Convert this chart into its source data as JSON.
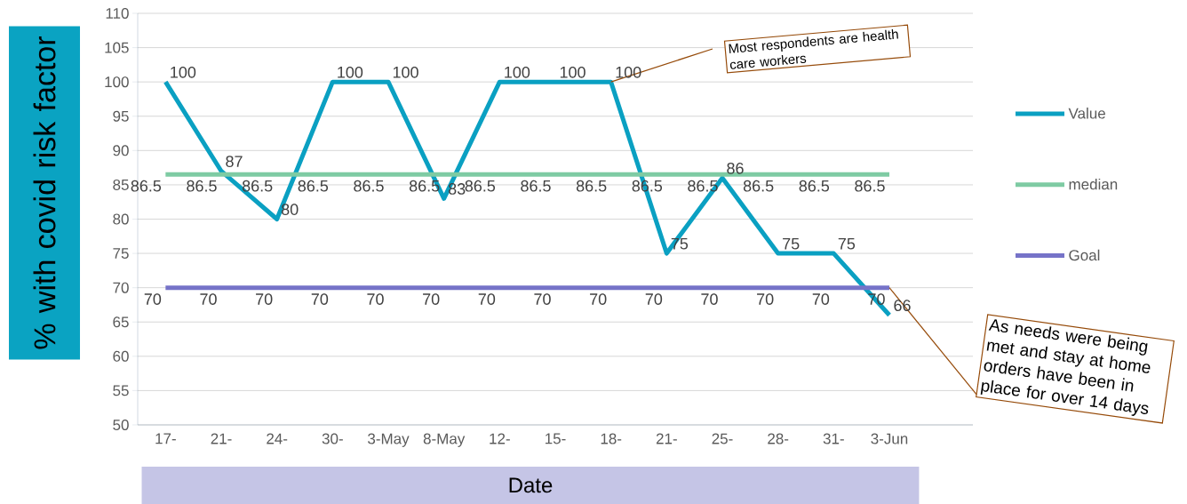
{
  "chart_data": {
    "type": "line",
    "ylabel": "% with covid risk factor",
    "xlabel": "Date",
    "categories": [
      "17-",
      "21-",
      "24-",
      "30-",
      "3-May",
      "8-May",
      "12-",
      "15-",
      "18-",
      "21-",
      "25-",
      "28-",
      "31-",
      "3-Jun"
    ],
    "series": [
      {
        "name": "Value",
        "color": "#0aa0c2",
        "values": [
          100,
          87,
          80,
          100,
          100,
          83,
          100,
          100,
          100,
          75,
          86,
          75,
          75,
          66
        ]
      },
      {
        "name": "median",
        "color": "#7ecba3",
        "values": [
          86.5,
          86.5,
          86.5,
          86.5,
          86.5,
          86.5,
          86.5,
          86.5,
          86.5,
          86.5,
          86.5,
          86.5,
          86.5,
          86.5
        ]
      },
      {
        "name": "Goal",
        "color": "#7673c8",
        "values": [
          70,
          70,
          70,
          70,
          70,
          70,
          70,
          70,
          70,
          70,
          70,
          70,
          70,
          70
        ]
      }
    ],
    "ylim": [
      50,
      110
    ],
    "yticks": [
      50,
      55,
      60,
      65,
      70,
      75,
      80,
      85,
      90,
      95,
      100,
      105,
      110
    ],
    "grid": "y",
    "legend": "right",
    "data_labels": true,
    "marker": "none",
    "line_style": "solid",
    "annotations": [
      {
        "text": "Most respondents are health care workers",
        "x": "18-",
        "y": 100
      },
      {
        "text": "As needs were being met and stay at home orders have been in place for over 14 days",
        "x": "3-Jun",
        "y": 70
      }
    ]
  }
}
